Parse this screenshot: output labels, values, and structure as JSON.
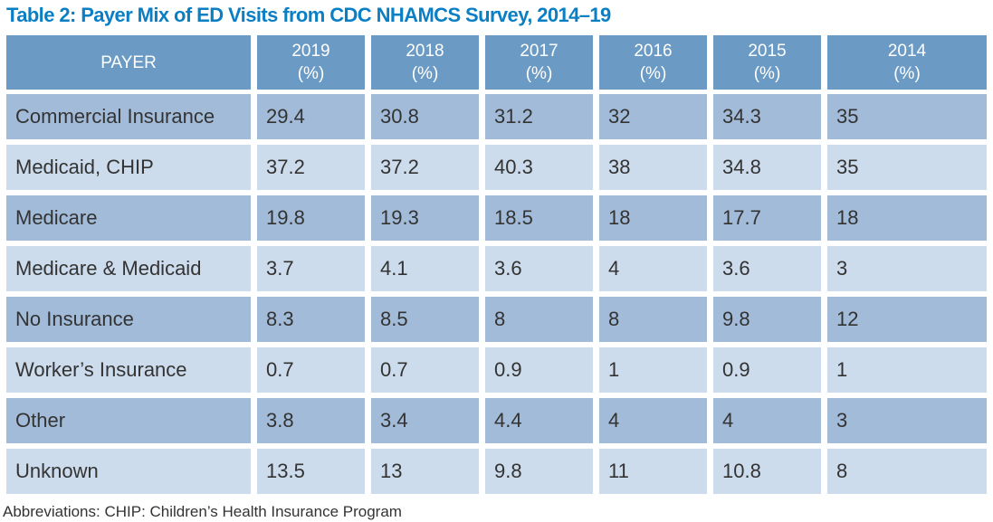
{
  "title": "Table 2: Payer Mix of ED Visits from CDC NHAMCS Survey, 2014–19",
  "colors": {
    "title": "#0a7fc4",
    "header_bg": "#6b9bc4",
    "row_dark": "#a2bbd9",
    "row_light": "#cddcec"
  },
  "table": {
    "headers": [
      {
        "line1": "PAYER",
        "line2": ""
      },
      {
        "line1": "2019",
        "line2": "(%)"
      },
      {
        "line1": "2018",
        "line2": "(%)"
      },
      {
        "line1": "2017",
        "line2": "(%)"
      },
      {
        "line1": "2016",
        "line2": "(%)"
      },
      {
        "line1": "2015",
        "line2": "(%)"
      },
      {
        "line1": "2014",
        "line2": "(%)"
      }
    ],
    "rows": [
      [
        "Commercial Insurance",
        "29.4",
        "30.8",
        "31.2",
        "32",
        "34.3",
        "35"
      ],
      [
        "Medicaid, CHIP",
        "37.2",
        "37.2",
        "40.3",
        "38",
        "34.8",
        "35"
      ],
      [
        "Medicare",
        "19.8",
        "19.3",
        "18.5",
        "18",
        "17.7",
        "18"
      ],
      [
        "Medicare & Medicaid",
        "3.7",
        "4.1",
        "3.6",
        "4",
        "3.6",
        "3"
      ],
      [
        "No Insurance",
        "8.3",
        "8.5",
        "8",
        "8",
        "9.8",
        "12"
      ],
      [
        "Worker’s Insurance",
        "0.7",
        "0.7",
        "0.9",
        "1",
        "0.9",
        "1"
      ],
      [
        "Other",
        "3.8",
        "3.4",
        "4.4",
        "4",
        "4",
        "3"
      ],
      [
        "Unknown",
        "13.5",
        "13",
        "9.8",
        "11",
        "10.8",
        "8"
      ]
    ]
  },
  "footnote": "Abbreviations: CHIP: Children’s Health Insurance Program"
}
